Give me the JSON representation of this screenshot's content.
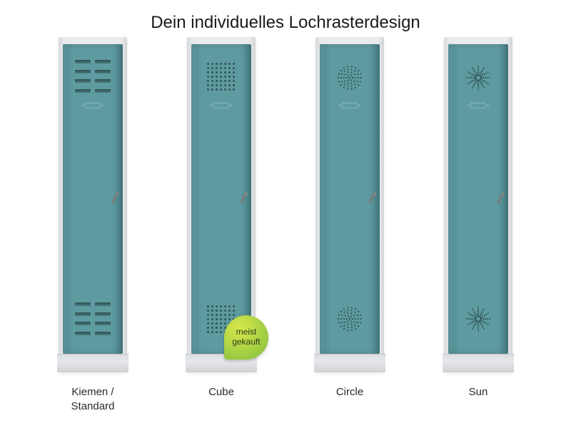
{
  "title": "Dein individuelles Lochrasterdesign",
  "door_color": "#5d9ba0",
  "door_color_dark": "#4d888e",
  "frame_color": "#e6e8eb",
  "hole_color": "rgba(0,0,0,0.45)",
  "badge_gradient_from": "#7fbf3f",
  "badge_gradient_to": "#d9e84a",
  "badge_text": "meist\ngekauft",
  "options": [
    {
      "id": "kiemen",
      "label": "Kiemen /\nStandard",
      "pattern": "slats",
      "badge": false
    },
    {
      "id": "cube",
      "label": "Cube",
      "pattern": "cube",
      "badge": true
    },
    {
      "id": "circle",
      "label": "Circle",
      "pattern": "circle",
      "badge": false
    },
    {
      "id": "sun",
      "label": "Sun",
      "pattern": "sun",
      "badge": false
    }
  ]
}
